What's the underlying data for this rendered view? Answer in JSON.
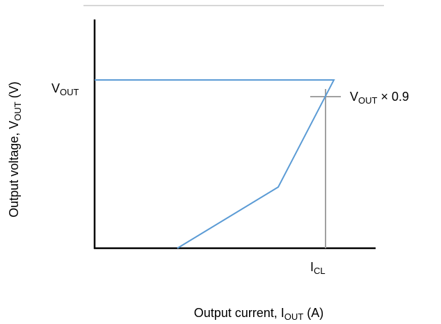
{
  "labels": {
    "vout": {
      "main": "V",
      "sub": "OUT"
    },
    "vout_09": {
      "main": "V",
      "sub": "OUT",
      "suffix": " × 0.9"
    },
    "icl": {
      "main": "I",
      "sub": "CL"
    },
    "y_axis": {
      "prefix": "Output voltage, V",
      "sub": "OUT",
      "suffix": " (V)"
    },
    "x_axis": {
      "prefix": "Output current, I",
      "sub": "OUT",
      "suffix": " (A)"
    }
  }
}
